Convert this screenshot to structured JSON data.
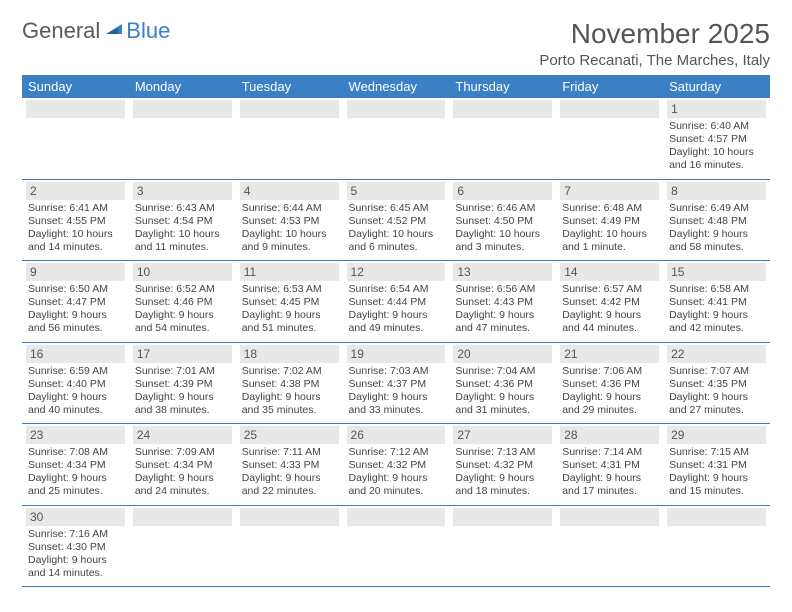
{
  "logo": {
    "text1": "General",
    "text2": "Blue"
  },
  "title": "November 2025",
  "location": "Porto Recanati, The Marches, Italy",
  "colors": {
    "header_bg": "#3b7fc4",
    "header_text": "#ffffff",
    "daynum_bg": "#e8e8e8",
    "border": "#3b7fc4",
    "text": "#444444"
  },
  "day_headers": [
    "Sunday",
    "Monday",
    "Tuesday",
    "Wednesday",
    "Thursday",
    "Friday",
    "Saturday"
  ],
  "weeks": [
    [
      null,
      null,
      null,
      null,
      null,
      null,
      {
        "n": "1",
        "sunrise": "6:40 AM",
        "sunset": "4:57 PM",
        "daylight": "10 hours and 16 minutes."
      }
    ],
    [
      {
        "n": "2",
        "sunrise": "6:41 AM",
        "sunset": "4:55 PM",
        "daylight": "10 hours and 14 minutes."
      },
      {
        "n": "3",
        "sunrise": "6:43 AM",
        "sunset": "4:54 PM",
        "daylight": "10 hours and 11 minutes."
      },
      {
        "n": "4",
        "sunrise": "6:44 AM",
        "sunset": "4:53 PM",
        "daylight": "10 hours and 9 minutes."
      },
      {
        "n": "5",
        "sunrise": "6:45 AM",
        "sunset": "4:52 PM",
        "daylight": "10 hours and 6 minutes."
      },
      {
        "n": "6",
        "sunrise": "6:46 AM",
        "sunset": "4:50 PM",
        "daylight": "10 hours and 3 minutes."
      },
      {
        "n": "7",
        "sunrise": "6:48 AM",
        "sunset": "4:49 PM",
        "daylight": "10 hours and 1 minute."
      },
      {
        "n": "8",
        "sunrise": "6:49 AM",
        "sunset": "4:48 PM",
        "daylight": "9 hours and 58 minutes."
      }
    ],
    [
      {
        "n": "9",
        "sunrise": "6:50 AM",
        "sunset": "4:47 PM",
        "daylight": "9 hours and 56 minutes."
      },
      {
        "n": "10",
        "sunrise": "6:52 AM",
        "sunset": "4:46 PM",
        "daylight": "9 hours and 54 minutes."
      },
      {
        "n": "11",
        "sunrise": "6:53 AM",
        "sunset": "4:45 PM",
        "daylight": "9 hours and 51 minutes."
      },
      {
        "n": "12",
        "sunrise": "6:54 AM",
        "sunset": "4:44 PM",
        "daylight": "9 hours and 49 minutes."
      },
      {
        "n": "13",
        "sunrise": "6:56 AM",
        "sunset": "4:43 PM",
        "daylight": "9 hours and 47 minutes."
      },
      {
        "n": "14",
        "sunrise": "6:57 AM",
        "sunset": "4:42 PM",
        "daylight": "9 hours and 44 minutes."
      },
      {
        "n": "15",
        "sunrise": "6:58 AM",
        "sunset": "4:41 PM",
        "daylight": "9 hours and 42 minutes."
      }
    ],
    [
      {
        "n": "16",
        "sunrise": "6:59 AM",
        "sunset": "4:40 PM",
        "daylight": "9 hours and 40 minutes."
      },
      {
        "n": "17",
        "sunrise": "7:01 AM",
        "sunset": "4:39 PM",
        "daylight": "9 hours and 38 minutes."
      },
      {
        "n": "18",
        "sunrise": "7:02 AM",
        "sunset": "4:38 PM",
        "daylight": "9 hours and 35 minutes."
      },
      {
        "n": "19",
        "sunrise": "7:03 AM",
        "sunset": "4:37 PM",
        "daylight": "9 hours and 33 minutes."
      },
      {
        "n": "20",
        "sunrise": "7:04 AM",
        "sunset": "4:36 PM",
        "daylight": "9 hours and 31 minutes."
      },
      {
        "n": "21",
        "sunrise": "7:06 AM",
        "sunset": "4:36 PM",
        "daylight": "9 hours and 29 minutes."
      },
      {
        "n": "22",
        "sunrise": "7:07 AM",
        "sunset": "4:35 PM",
        "daylight": "9 hours and 27 minutes."
      }
    ],
    [
      {
        "n": "23",
        "sunrise": "7:08 AM",
        "sunset": "4:34 PM",
        "daylight": "9 hours and 25 minutes."
      },
      {
        "n": "24",
        "sunrise": "7:09 AM",
        "sunset": "4:34 PM",
        "daylight": "9 hours and 24 minutes."
      },
      {
        "n": "25",
        "sunrise": "7:11 AM",
        "sunset": "4:33 PM",
        "daylight": "9 hours and 22 minutes."
      },
      {
        "n": "26",
        "sunrise": "7:12 AM",
        "sunset": "4:32 PM",
        "daylight": "9 hours and 20 minutes."
      },
      {
        "n": "27",
        "sunrise": "7:13 AM",
        "sunset": "4:32 PM",
        "daylight": "9 hours and 18 minutes."
      },
      {
        "n": "28",
        "sunrise": "7:14 AM",
        "sunset": "4:31 PM",
        "daylight": "9 hours and 17 minutes."
      },
      {
        "n": "29",
        "sunrise": "7:15 AM",
        "sunset": "4:31 PM",
        "daylight": "9 hours and 15 minutes."
      }
    ],
    [
      {
        "n": "30",
        "sunrise": "7:16 AM",
        "sunset": "4:30 PM",
        "daylight": "9 hours and 14 minutes."
      },
      null,
      null,
      null,
      null,
      null,
      null
    ]
  ],
  "labels": {
    "sunrise": "Sunrise:",
    "sunset": "Sunset:",
    "daylight": "Daylight:"
  }
}
